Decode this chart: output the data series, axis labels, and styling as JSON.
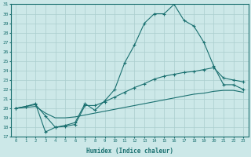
{
  "xlabel": "Humidex (Indice chaleur)",
  "background_color": "#cce8e8",
  "line_color": "#1a7070",
  "grid_color": "#aacece",
  "xlim": [
    -0.5,
    23.5
  ],
  "ylim": [
    17,
    31
  ],
  "xticks": [
    0,
    1,
    2,
    3,
    4,
    5,
    6,
    7,
    8,
    9,
    10,
    11,
    12,
    13,
    14,
    15,
    16,
    17,
    18,
    19,
    20,
    21,
    22,
    23
  ],
  "yticks": [
    17,
    18,
    19,
    20,
    21,
    22,
    23,
    24,
    25,
    26,
    27,
    28,
    29,
    30,
    31
  ],
  "line1_x": [
    0,
    1,
    2,
    3,
    4,
    5,
    6,
    7,
    8,
    9,
    10,
    11,
    12,
    13,
    14,
    15,
    16,
    17,
    18,
    19,
    20,
    21,
    22,
    23
  ],
  "line1_y": [
    20.0,
    20.2,
    20.5,
    17.5,
    18.0,
    18.2,
    18.5,
    20.5,
    19.8,
    20.8,
    22.0,
    24.8,
    26.7,
    29.0,
    30.0,
    30.0,
    31.0,
    29.3,
    28.7,
    27.0,
    24.5,
    22.5,
    22.5,
    22.0
  ],
  "line2_x": [
    0,
    1,
    2,
    3,
    4,
    5,
    6,
    7,
    8,
    9,
    10,
    11,
    12,
    13,
    14,
    15,
    16,
    17,
    18,
    19,
    20,
    21,
    22,
    23
  ],
  "line2_y": [
    20.0,
    20.2,
    20.4,
    19.2,
    18.0,
    18.1,
    18.3,
    20.3,
    20.3,
    20.7,
    21.2,
    21.7,
    22.2,
    22.6,
    23.1,
    23.4,
    23.6,
    23.8,
    23.9,
    24.1,
    24.3,
    23.2,
    23.0,
    22.8
  ],
  "line3_x": [
    0,
    1,
    2,
    3,
    4,
    5,
    6,
    7,
    8,
    9,
    10,
    11,
    12,
    13,
    14,
    15,
    16,
    17,
    18,
    19,
    20,
    21,
    22,
    23
  ],
  "line3_y": [
    20.0,
    20.1,
    20.2,
    19.5,
    19.0,
    19.0,
    19.1,
    19.3,
    19.5,
    19.7,
    19.9,
    20.1,
    20.3,
    20.5,
    20.7,
    20.9,
    21.1,
    21.3,
    21.5,
    21.6,
    21.8,
    21.9,
    21.9,
    21.7
  ]
}
